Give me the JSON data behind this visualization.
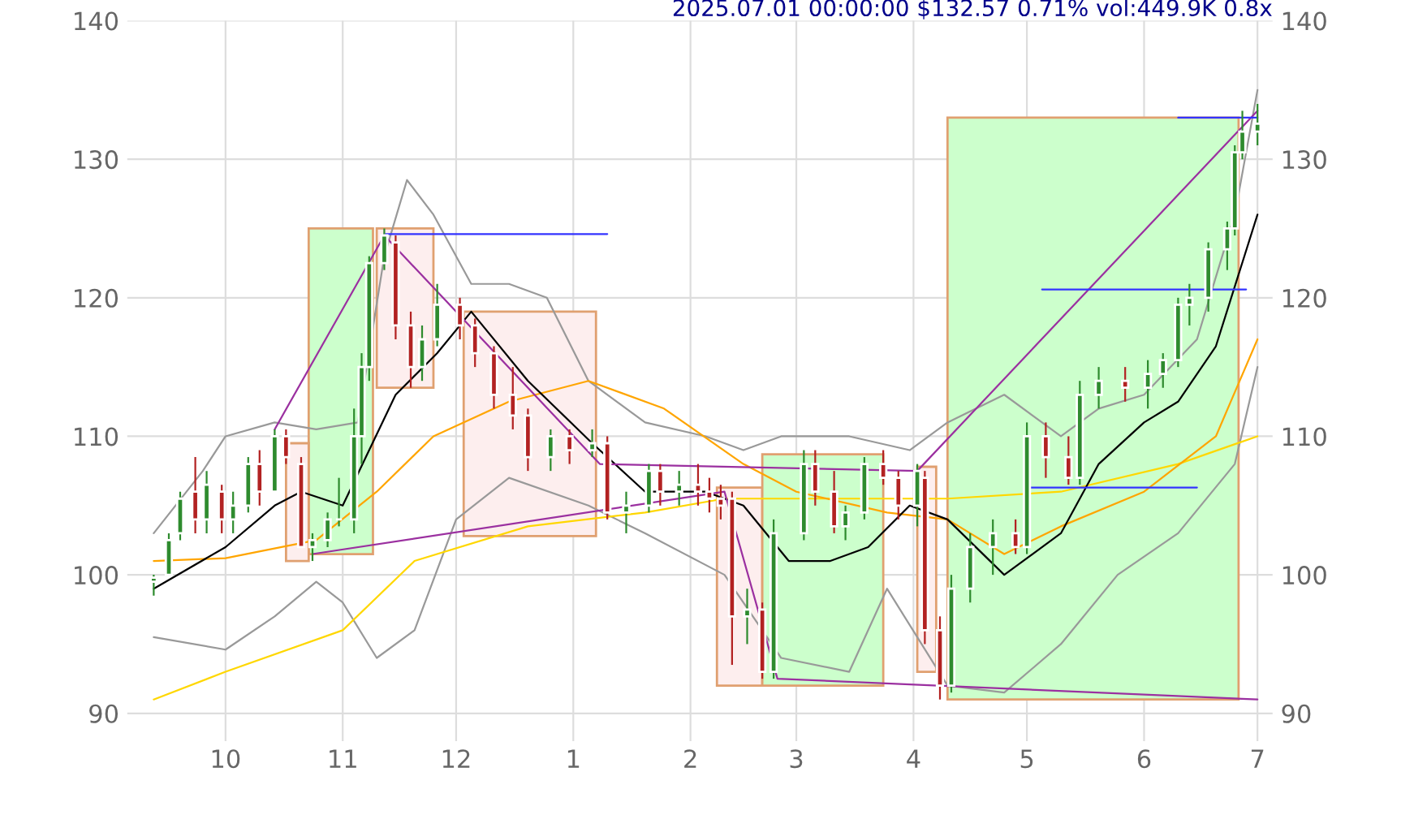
{
  "chart_data": {
    "type": "candlestick",
    "title": "2025.07.01 00:00:00 $132.57 0.71% vol:449.9K 0.8x",
    "x": [
      "2024-09-12",
      "2024-09-16",
      "2024-09-19",
      "2024-09-23",
      "2024-09-26",
      "2024-09-30",
      "2024-10-03",
      "2024-10-07",
      "2024-10-10",
      "2024-10-14",
      "2024-10-17",
      "2024-10-21",
      "2024-10-24",
      "2024-10-28",
      "2024-10-31",
      "2024-11-04",
      "2024-11-06",
      "2024-11-08",
      "2024-11-12",
      "2024-11-15",
      "2024-11-19",
      "2024-11-22",
      "2024-11-26",
      "2024-12-02",
      "2024-12-06",
      "2024-12-11",
      "2024-12-16",
      "2024-12-20",
      "2024-12-26",
      "2024-12-31",
      "2025-01-06",
      "2025-01-10",
      "2025-01-15",
      "2025-01-21",
      "2025-01-24",
      "2025-01-29",
      "2025-02-03",
      "2025-02-06",
      "2025-02-09",
      "2025-02-12",
      "2025-02-16",
      "2025-02-20",
      "2025-02-23",
      "2025-03-03",
      "2025-03-06",
      "2025-03-11",
      "2025-03-14",
      "2025-03-19",
      "2025-03-24",
      "2025-03-28",
      "2025-04-02",
      "2025-04-04",
      "2025-04-08",
      "2025-04-11",
      "2025-04-16",
      "2025-04-22",
      "2025-04-28",
      "2025-05-01",
      "2025-05-06",
      "2025-05-12",
      "2025-05-15",
      "2025-05-20",
      "2025-05-27",
      "2025-06-02",
      "2025-06-06",
      "2025-06-10",
      "2025-06-13",
      "2025-06-18",
      "2025-06-23",
      "2025-06-25",
      "2025-06-27",
      "2025-07-01"
    ],
    "ohlc": [
      [
        99.5,
        100,
        98.5,
        99.8
      ],
      [
        100,
        103,
        100,
        102.5
      ],
      [
        103,
        106,
        102.5,
        105.5
      ],
      [
        106,
        108.5,
        103,
        104
      ],
      [
        104,
        107.5,
        103,
        106.5
      ],
      [
        106,
        106.5,
        103,
        104
      ],
      [
        104,
        106,
        103,
        105
      ],
      [
        105,
        108.5,
        104.5,
        108
      ],
      [
        108,
        109,
        105,
        106
      ],
      [
        106,
        110.5,
        106,
        110
      ],
      [
        110,
        110.5,
        108,
        108.5
      ],
      [
        108,
        108.5,
        102,
        102
      ],
      [
        102,
        103,
        101,
        102.5
      ],
      [
        102.5,
        104.5,
        102,
        104
      ],
      [
        104,
        107,
        103.5,
        104
      ],
      [
        104,
        112,
        103,
        110
      ],
      [
        110,
        116,
        108,
        115
      ],
      [
        115,
        123,
        114,
        122.5
      ],
      [
        122.5,
        125,
        122,
        124.5
      ],
      [
        124,
        124.5,
        117,
        118
      ],
      [
        118,
        119,
        113.5,
        115
      ],
      [
        115,
        118,
        114,
        117
      ],
      [
        117,
        121,
        116.5,
        119.5
      ],
      [
        119.5,
        120,
        117,
        118
      ],
      [
        118,
        118.5,
        115,
        116
      ],
      [
        116,
        116.5,
        112,
        113
      ],
      [
        113,
        115,
        110.5,
        111.5
      ],
      [
        111.5,
        112,
        107.5,
        108.5
      ],
      [
        108.5,
        110.5,
        107.5,
        110
      ],
      [
        110,
        110.5,
        108,
        109
      ],
      [
        109,
        110.5,
        108.5,
        109.5
      ],
      [
        109.5,
        110,
        104,
        104.5
      ],
      [
        104.5,
        106,
        103,
        105
      ],
      [
        105,
        108,
        104.5,
        107.5
      ],
      [
        107.5,
        108,
        105,
        106
      ],
      [
        106,
        107.5,
        105,
        106.5
      ],
      [
        106.5,
        108,
        105,
        106
      ],
      [
        106,
        107,
        104.5,
        105.5
      ],
      [
        105.5,
        106.5,
        104,
        105
      ],
      [
        105.5,
        106,
        93.5,
        97
      ],
      [
        97,
        99,
        95,
        97.5
      ],
      [
        97.5,
        98,
        92.5,
        93
      ],
      [
        93,
        104,
        92.5,
        103
      ],
      [
        103,
        109,
        102.5,
        108
      ],
      [
        108,
        109,
        105,
        106
      ],
      [
        106,
        107.5,
        103,
        103.5
      ],
      [
        103.5,
        105,
        102.5,
        104.5
      ],
      [
        104.5,
        108.5,
        104,
        108
      ],
      [
        108,
        109,
        106.5,
        107
      ],
      [
        107,
        107.5,
        104,
        105
      ],
      [
        105,
        108,
        103.5,
        107.5
      ],
      [
        107,
        107.5,
        95,
        96
      ],
      [
        96,
        97,
        91,
        92
      ],
      [
        92,
        100,
        91.5,
        99
      ],
      [
        99,
        103,
        98,
        102
      ],
      [
        102,
        104,
        100,
        103
      ],
      [
        103,
        104,
        101.5,
        102
      ],
      [
        102,
        111,
        101.5,
        110
      ],
      [
        110,
        111,
        107,
        108.5
      ],
      [
        108.5,
        110,
        106.5,
        107
      ],
      [
        107,
        114,
        106.5,
        113
      ],
      [
        113,
        115,
        112,
        114
      ],
      [
        114,
        115,
        112.5,
        113.5
      ],
      [
        113.5,
        115.5,
        112,
        114.5
      ],
      [
        114.5,
        116,
        113.5,
        115.5
      ],
      [
        115.5,
        120,
        115,
        119.5
      ],
      [
        119.5,
        121,
        118,
        120
      ],
      [
        120,
        124,
        119,
        123.5
      ],
      [
        123.5,
        125.5,
        122,
        125
      ],
      [
        125,
        131,
        124.5,
        130.5
      ],
      [
        130.5,
        133.5,
        130,
        132
      ],
      [
        132,
        134,
        131,
        132.57
      ]
    ],
    "series": [
      {
        "type": "area",
        "color": "#ccffcc",
        "x": [
          "2024-10-23",
          "2024-11-09",
          "2024-11-09",
          "2024-10-23",
          "2024-10-23"
        ],
        "values": [
          101.5,
          101.5,
          125,
          125,
          101.5
        ]
      },
      {
        "type": "area",
        "color": "#fdeeee",
        "x": [
          "2024-10-17",
          "2024-10-23",
          "2024-10-23",
          "2024-10-17",
          "2024-10-17"
        ],
        "values": [
          101,
          101,
          109.5,
          109.5,
          101
        ]
      },
      {
        "type": "area",
        "color": "#fdeeee",
        "x": [
          "2024-11-10",
          "2024-11-25",
          "2024-11-25",
          "2024-11-10",
          "2024-11-10"
        ],
        "values": [
          113.5,
          113.5,
          125,
          125,
          113.5
        ]
      },
      {
        "type": "area",
        "color": "#fdeeee",
        "x": [
          "2024-12-03",
          "2025-01-07",
          "2025-01-07",
          "2024-12-03",
          "2024-12-03"
        ],
        "values": [
          102.8,
          102.8,
          119,
          119,
          102.8
        ]
      },
      {
        "type": "area",
        "color": "#fdeeee",
        "x": [
          "2025-02-08",
          "2025-02-20",
          "2025-02-20",
          "2025-02-08",
          "2025-02-08"
        ],
        "values": [
          92,
          92,
          106.3,
          106.3,
          92
        ]
      },
      {
        "type": "area",
        "color": "#ccffcc",
        "x": [
          "2025-02-20",
          "2025-03-24",
          "2025-03-24",
          "2025-02-20",
          "2025-02-20"
        ],
        "values": [
          92,
          92,
          108.7,
          108.7,
          92
        ]
      },
      {
        "type": "area",
        "color": "#fdeeee",
        "x": [
          "2025-04-02",
          "2025-04-07",
          "2025-04-07",
          "2025-04-02",
          "2025-04-02"
        ],
        "values": [
          93,
          93,
          107.8,
          107.8,
          93
        ]
      },
      {
        "type": "area",
        "color": "#ccffcc",
        "x": [
          "2025-04-10",
          "2025-06-26",
          "2025-06-26",
          "2025-04-10",
          "2025-04-10"
        ],
        "values": [
          91,
          91,
          133,
          133,
          91
        ]
      },
      {
        "type": "line",
        "color": "#999999",
        "x": [
          "2024-09-12",
          "2024-09-25",
          "2024-10-01",
          "2024-10-14",
          "2024-10-25",
          "2024-11-05",
          "2024-11-12",
          "2024-11-18",
          "2024-11-25",
          "2024-12-05",
          "2024-12-15",
          "2024-12-25",
          "2025-01-05",
          "2025-01-20",
          "2025-02-05",
          "2025-02-15",
          "2025-02-25",
          "2025-03-15",
          "2025-03-31",
          "2025-04-10",
          "2025-04-25",
          "2025-05-10",
          "2025-05-20",
          "2025-06-01",
          "2025-06-15",
          "2025-06-25",
          "2025-07-01"
        ],
        "values": [
          103,
          107.5,
          110,
          111,
          110.5,
          111,
          123,
          128.5,
          126,
          121,
          121,
          120,
          114,
          111,
          110,
          109,
          110,
          110,
          109,
          111,
          113,
          110,
          112,
          113,
          117,
          126,
          135
        ]
      },
      {
        "type": "line",
        "color": "#999999",
        "x": [
          "2024-09-12",
          "2024-10-01",
          "2024-10-14",
          "2024-10-25",
          "2024-11-01",
          "2024-11-10",
          "2024-11-20",
          "2024-12-01",
          "2024-12-15",
          "2025-01-05",
          "2025-01-20",
          "2025-02-10",
          "2025-02-25",
          "2025-03-15",
          "2025-03-25",
          "2025-04-10",
          "2025-04-25",
          "2025-05-10",
          "2025-05-25",
          "2025-06-10",
          "2025-06-25",
          "2025-07-01"
        ],
        "values": [
          95.5,
          94.6,
          97,
          99.5,
          98,
          94,
          96,
          104,
          107,
          105,
          103,
          100,
          94,
          93,
          99,
          92,
          91.5,
          95,
          100,
          103,
          108,
          115
        ]
      },
      {
        "type": "line",
        "color": "#ffd700",
        "x": [
          "2024-09-12",
          "2024-10-01",
          "2024-11-01",
          "2024-11-20",
          "2024-12-20",
          "2025-01-20",
          "2025-02-10",
          "2025-03-10",
          "2025-04-10",
          "2025-05-10",
          "2025-06-10",
          "2025-07-01"
        ],
        "values": [
          91,
          93,
          96,
          101,
          103.5,
          104.5,
          105.5,
          105.5,
          105.5,
          106,
          108,
          110
        ]
      },
      {
        "type": "line",
        "color": "#ffa500",
        "x": [
          "2024-09-12",
          "2024-10-01",
          "2024-10-25",
          "2024-11-10",
          "2024-11-25",
          "2024-12-15",
          "2025-01-05",
          "2025-01-25",
          "2025-02-15",
          "2025-03-01",
          "2025-03-25",
          "2025-04-10",
          "2025-04-25",
          "2025-05-10",
          "2025-06-01",
          "2025-06-20",
          "2025-07-01"
        ],
        "values": [
          101,
          101.2,
          102.5,
          106,
          110,
          112.5,
          114,
          112,
          108,
          106,
          104.5,
          104,
          101.5,
          103.5,
          106,
          110,
          117
        ]
      },
      {
        "type": "line",
        "color": "#000000",
        "x": [
          "2024-09-12",
          "2024-10-01",
          "2024-10-14",
          "2024-10-21",
          "2024-11-01",
          "2024-11-08",
          "2024-11-15",
          "2024-11-26",
          "2024-12-05",
          "2024-12-20",
          "2025-01-06",
          "2025-01-20",
          "2025-02-05",
          "2025-02-15",
          "2025-02-27",
          "2025-03-10",
          "2025-03-20",
          "2025-03-31",
          "2025-04-10",
          "2025-04-25",
          "2025-05-10",
          "2025-05-20",
          "2025-06-01",
          "2025-06-10",
          "2025-06-20",
          "2025-07-01"
        ],
        "values": [
          99,
          102,
          105,
          106,
          105,
          109,
          113,
          116,
          119,
          114,
          109.5,
          106,
          106,
          105,
          101,
          101,
          102,
          105,
          104,
          100,
          103,
          108,
          111,
          112.5,
          116.5,
          126
        ]
      },
      {
        "type": "line",
        "color": "#9b30a0",
        "x": [
          "2024-10-14",
          "2024-11-12",
          "2025-01-08",
          "2025-04-02",
          "2025-07-01"
        ],
        "values": [
          110.5,
          124.5,
          108,
          107.5,
          133.5
        ]
      },
      {
        "type": "line",
        "color": "#9b30a0",
        "x": [
          "2024-10-24",
          "2025-02-10",
          "2025-02-24",
          "2025-07-01"
        ],
        "values": [
          101.5,
          106,
          92.5,
          91
        ]
      },
      {
        "type": "line",
        "color": "#3333ff",
        "x": [
          "2024-11-12",
          "2025-01-10"
        ],
        "values": [
          124.6,
          124.6
        ]
      },
      {
        "type": "line",
        "color": "#3333ff",
        "x": [
          "2025-05-05",
          "2025-06-28"
        ],
        "values": [
          120.6,
          120.6
        ]
      },
      {
        "type": "line",
        "color": "#3333ff",
        "x": [
          "2025-06-10",
          "2025-07-01"
        ],
        "values": [
          133,
          133
        ]
      },
      {
        "type": "line",
        "color": "#3333ff",
        "x": [
          "2025-05-01",
          "2025-06-15"
        ],
        "values": [
          106.3,
          106.3
        ]
      }
    ],
    "xlim": [
      "2024-09-05",
      "2025-07-05"
    ],
    "xticks": [
      {
        "value": "2024-10-01",
        "label": "10"
      },
      {
        "value": "2024-11-01",
        "label": "11"
      },
      {
        "value": "2024-12-01",
        "label": "12"
      },
      {
        "value": "2025-01-01",
        "label": "1"
      },
      {
        "value": "2025-02-01",
        "label": "2"
      },
      {
        "value": "2025-03-01",
        "label": "3"
      },
      {
        "value": "2025-04-01",
        "label": "4"
      },
      {
        "value": "2025-05-01",
        "label": "5"
      },
      {
        "value": "2025-06-01",
        "label": "6"
      },
      {
        "value": "2025-07-01",
        "label": "7"
      }
    ],
    "ylim": [
      88,
      140
    ],
    "yticks": [
      90,
      100,
      110,
      120,
      130,
      140
    ],
    "y2lim": [
      88,
      140
    ],
    "y2ticks": [
      90,
      100,
      110,
      120,
      130,
      140
    ],
    "grid": true
  }
}
